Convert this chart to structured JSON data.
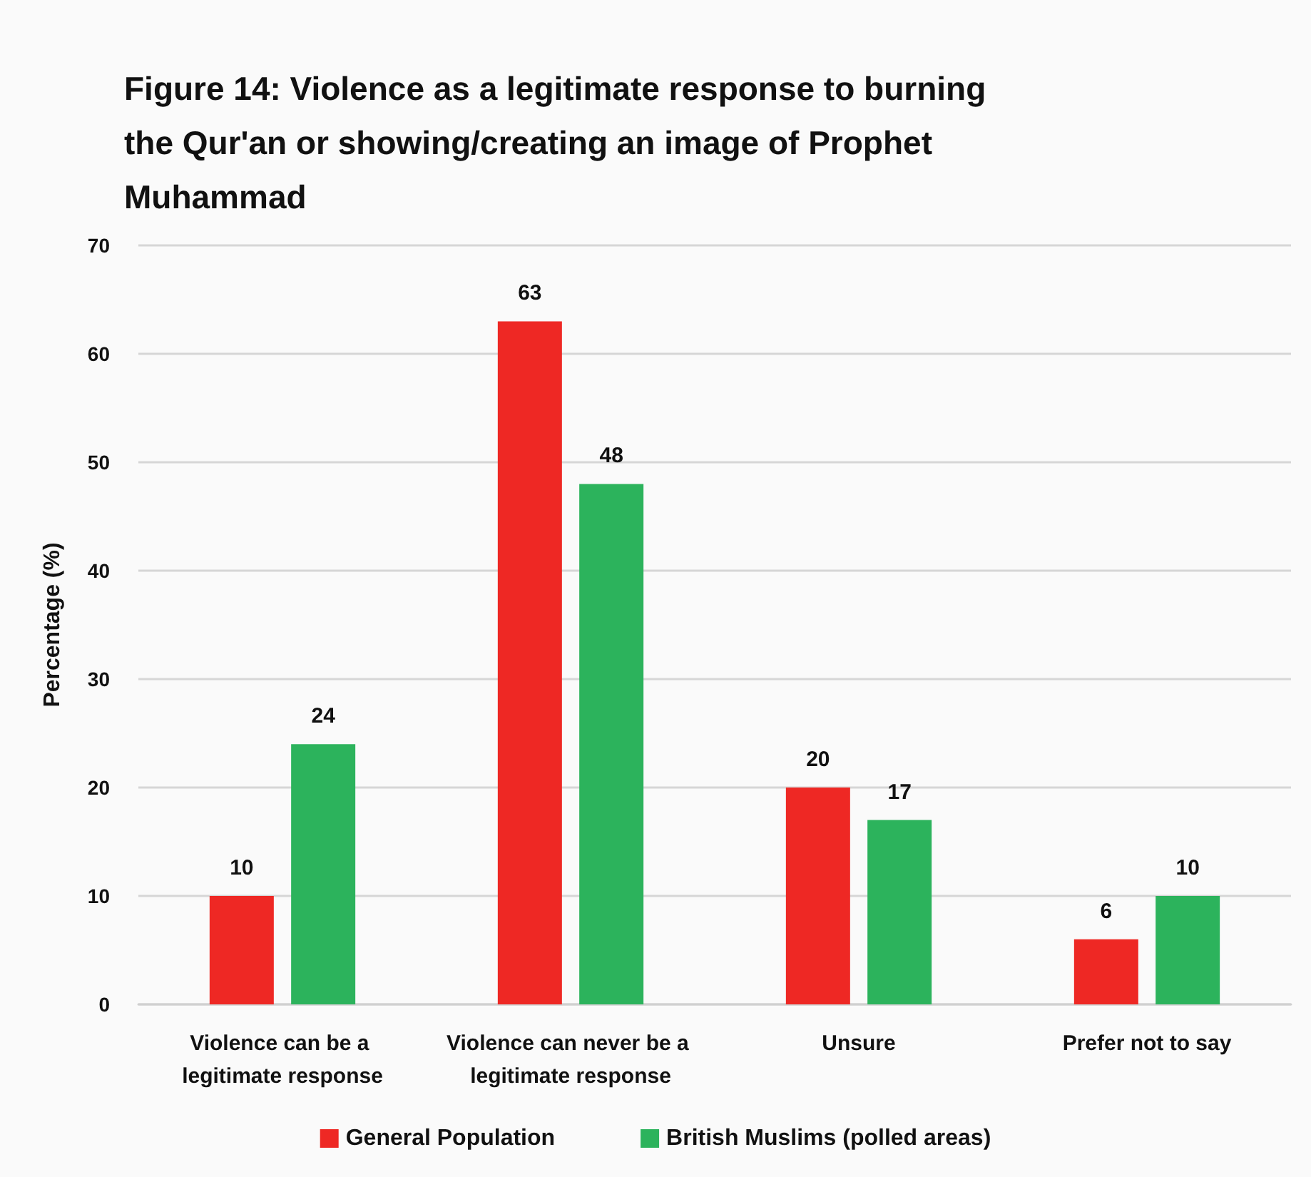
{
  "chart_data": {
    "type": "bar",
    "title": "Figure 14: Violence as a legitimate response to burning the Qur'an or showing/creating an image of Prophet Muhammad",
    "ylabel": "Percentage (%)",
    "categories": [
      "Violence can be a legitimate response",
      "Violence can never be a legitimate response",
      "Unsure",
      "Prefer not to say"
    ],
    "series": [
      {
        "name": "General Population",
        "color": "#ee2824",
        "values": [
          10,
          63,
          20,
          6
        ]
      },
      {
        "name": "British Muslims (polled areas)",
        "color": "#2cb35c",
        "values": [
          24,
          48,
          17,
          10
        ]
      }
    ],
    "ylim": [
      0,
      70
    ],
    "yticks": [
      0,
      10,
      20,
      30,
      40,
      50,
      60,
      70
    ],
    "grid": "y",
    "legend": "bottom",
    "data_labels": true
  }
}
